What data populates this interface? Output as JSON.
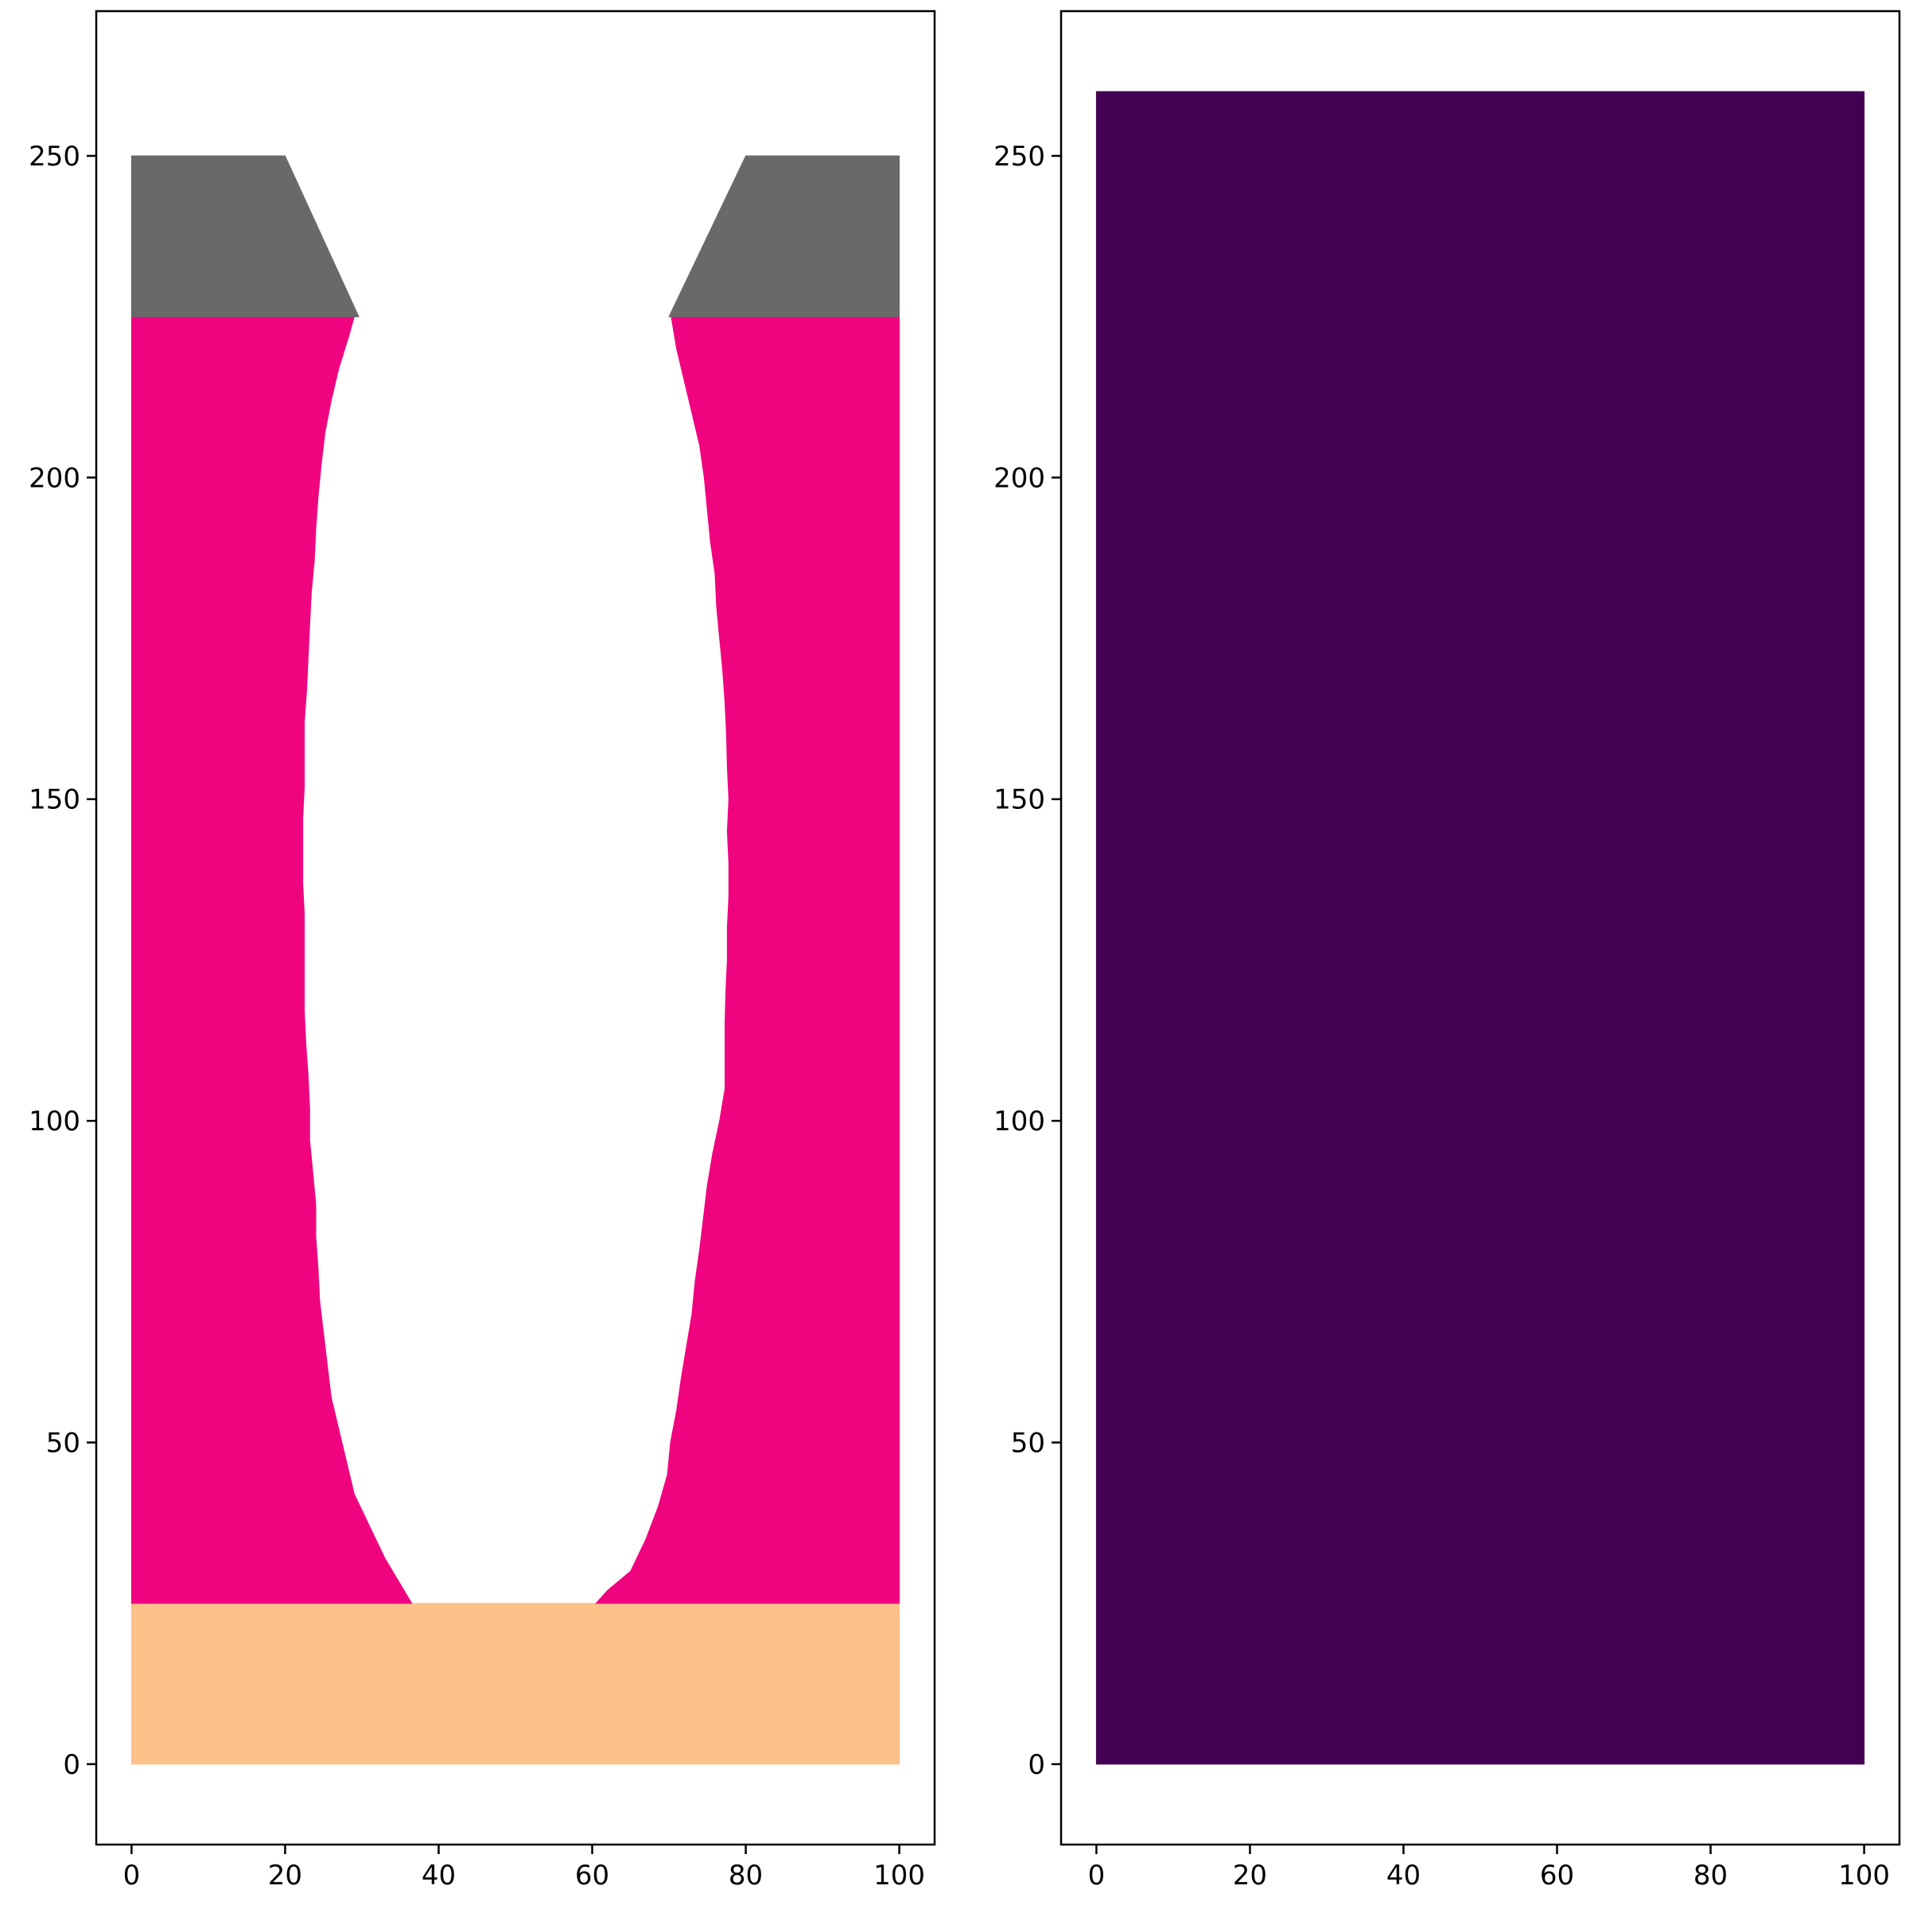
{
  "chart_data": [
    {
      "type": "area",
      "title": "",
      "xlabel": "",
      "ylabel": "",
      "xlim": [
        -4.6,
        104.6
      ],
      "ylim": [
        -12.5,
        272.5
      ],
      "xticks": [
        0,
        20,
        40,
        60,
        80,
        100
      ],
      "yticks": [
        0,
        50,
        100,
        150,
        200,
        250
      ],
      "grid": false,
      "legend": "none",
      "regions": [
        {
          "label": "bottom-layer",
          "color": "#fdc18a",
          "polygon": [
            [
              0,
              0
            ],
            [
              100,
              0
            ],
            [
              100,
              25
            ],
            [
              0,
              25
            ]
          ]
        },
        {
          "label": "middle-layer-left",
          "color": "#f0037f",
          "polygon": [
            [
              0,
              25
            ],
            [
              36.5,
              25
            ],
            [
              35,
              28
            ],
            [
              33,
              32
            ],
            [
              31,
              37
            ],
            [
              29,
              42
            ],
            [
              28,
              47
            ],
            [
              27,
              52
            ],
            [
              26,
              57
            ],
            [
              25.5,
              62
            ],
            [
              25,
              67
            ],
            [
              24.5,
              72
            ],
            [
              24.3,
              77
            ],
            [
              24,
              82
            ],
            [
              24,
              87
            ],
            [
              23.6,
              92
            ],
            [
              23.2,
              97
            ],
            [
              23.2,
              102
            ],
            [
              23,
              107
            ],
            [
              22.7,
              112
            ],
            [
              22.5,
              117
            ],
            [
              22.5,
              122
            ],
            [
              22.5,
              127
            ],
            [
              22.5,
              132
            ],
            [
              22.3,
              137
            ],
            [
              22.3,
              142
            ],
            [
              22.3,
              147
            ],
            [
              22.5,
              152
            ],
            [
              22.5,
              157
            ],
            [
              22.5,
              162
            ],
            [
              22.8,
              167
            ],
            [
              23,
              172
            ],
            [
              23.2,
              177
            ],
            [
              23.4,
              182
            ],
            [
              23.8,
              187
            ],
            [
              24,
              192
            ],
            [
              24.3,
              197
            ],
            [
              24.7,
              202
            ],
            [
              25.2,
              207
            ],
            [
              26,
              212
            ],
            [
              27,
              217
            ],
            [
              28.3,
              222
            ],
            [
              29,
              225
            ],
            [
              0,
              225
            ]
          ]
        },
        {
          "label": "middle-layer-right",
          "color": "#f0037f",
          "polygon": [
            [
              60.5,
              25
            ],
            [
              100,
              25
            ],
            [
              100,
              225
            ],
            [
              70.3,
              225
            ],
            [
              71,
              220
            ],
            [
              72,
              215
            ],
            [
              73,
              210
            ],
            [
              74,
              205
            ],
            [
              74.6,
              200
            ],
            [
              75,
              195
            ],
            [
              75.4,
              190
            ],
            [
              76,
              185
            ],
            [
              76.2,
              180
            ],
            [
              76.6,
              175
            ],
            [
              77,
              170
            ],
            [
              77.3,
              165
            ],
            [
              77.5,
              160
            ],
            [
              77.6,
              155
            ],
            [
              77.8,
              150
            ],
            [
              77.6,
              145
            ],
            [
              77.8,
              140
            ],
            [
              77.8,
              135
            ],
            [
              77.6,
              130
            ],
            [
              77.6,
              125
            ],
            [
              77.4,
              120
            ],
            [
              77.3,
              115
            ],
            [
              77.3,
              110
            ],
            [
              77.3,
              105
            ],
            [
              76.6,
              100
            ],
            [
              75.7,
              95
            ],
            [
              75,
              90
            ],
            [
              74.5,
              85
            ],
            [
              74,
              80
            ],
            [
              73.4,
              75
            ],
            [
              73,
              70
            ],
            [
              72.3,
              65
            ],
            [
              71.6,
              60
            ],
            [
              71,
              55
            ],
            [
              70.2,
              50
            ],
            [
              69.8,
              45
            ],
            [
              68.6,
              40
            ],
            [
              67,
              35
            ],
            [
              65,
              30
            ],
            [
              62,
              27
            ],
            [
              60.5,
              25
            ]
          ]
        },
        {
          "label": "top-layer-left",
          "color": "#696969",
          "polygon": [
            [
              0,
              225
            ],
            [
              29.6,
              225
            ],
            [
              20,
              250
            ],
            [
              0,
              250
            ]
          ]
        },
        {
          "label": "top-layer-right",
          "color": "#696969",
          "polygon": [
            [
              70,
              225
            ],
            [
              100,
              225
            ],
            [
              100,
              250
            ],
            [
              80,
              250
            ]
          ]
        }
      ]
    },
    {
      "type": "heatmap",
      "title": "",
      "xlabel": "",
      "ylabel": "",
      "xlim": [
        -4.6,
        104.6
      ],
      "ylim": [
        -12.5,
        272.5
      ],
      "xticks": [
        0,
        20,
        40,
        60,
        80,
        100
      ],
      "yticks": [
        0,
        50,
        100,
        150,
        200,
        250
      ],
      "grid": false,
      "legend": "none",
      "regions": [
        {
          "label": "uniform-field",
          "color": "#440154",
          "polygon": [
            [
              0,
              0
            ],
            [
              100,
              0
            ],
            [
              100,
              260
            ],
            [
              0,
              260
            ]
          ]
        }
      ]
    }
  ]
}
